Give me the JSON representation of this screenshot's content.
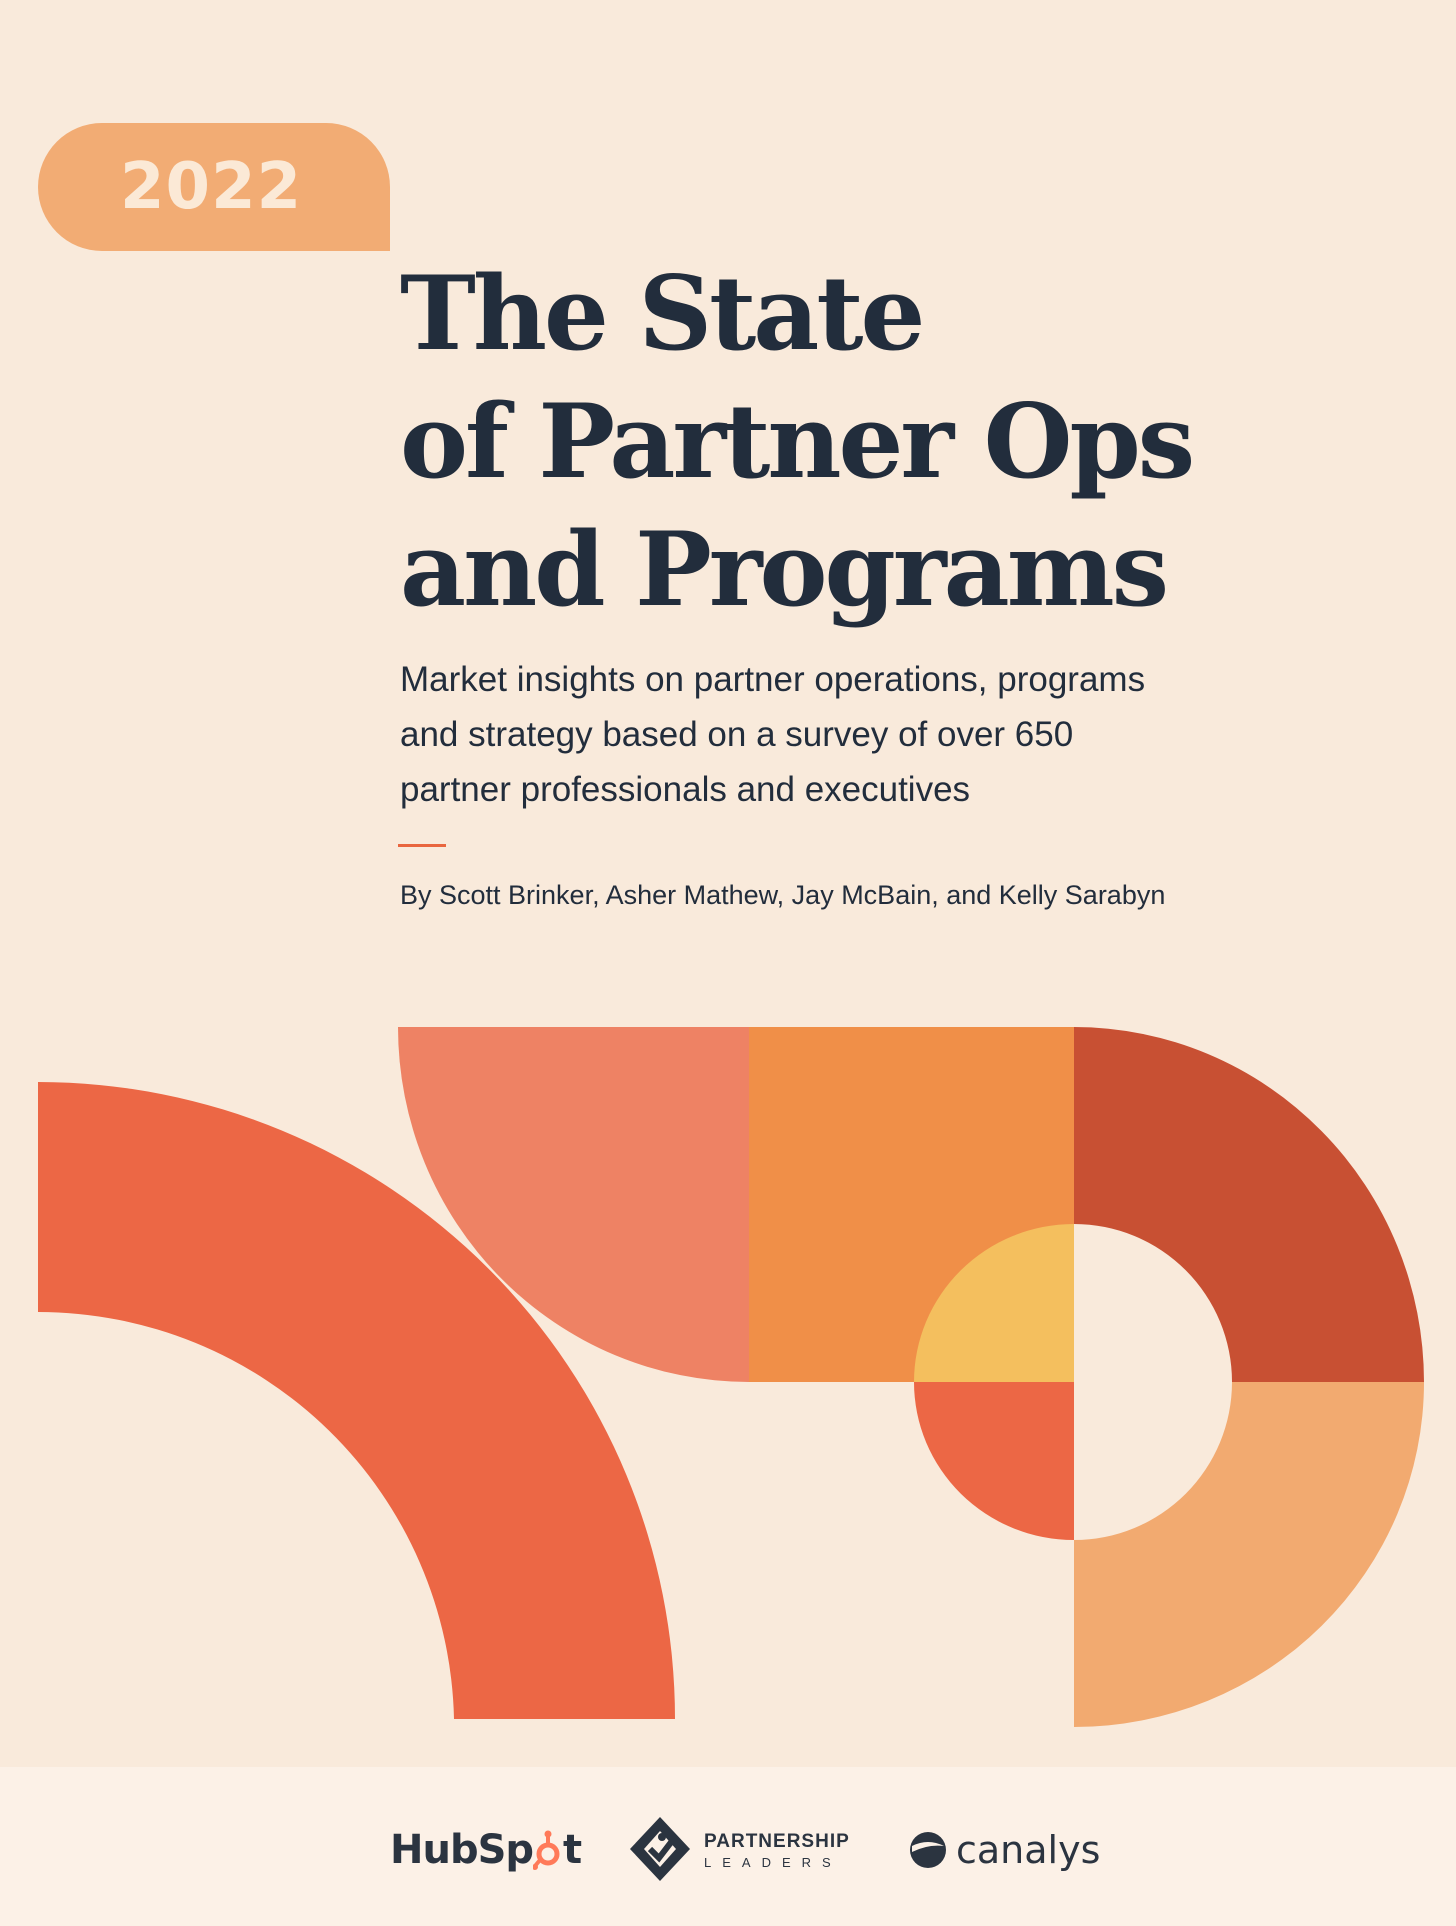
{
  "cover": {
    "year": "2022",
    "title_lines": [
      "The State",
      "of Partner Ops",
      "and Programs"
    ],
    "subtitle_lines": [
      "Market insights on partner operations, programs",
      "and strategy based on a survey of over 650",
      "partner professionals and executives"
    ],
    "byline": "By Scott Brinker, Asher Mathew, Jay McBain, and Kelly Sarabyn"
  },
  "logos": {
    "hubspot": {
      "text_before": "HubSp",
      "text_after": "t"
    },
    "partnership_leaders": {
      "line1": "PARTNERSHIP",
      "line2": "LEADERS"
    },
    "canalys": {
      "text": "canalys"
    }
  },
  "colors": {
    "background": "#f9eadb",
    "footer": "#fcf1e7",
    "navy": "#222d3c",
    "year_pill": "#f2ac74",
    "coral": "#ec6745",
    "salmon": "#ee8264",
    "orange": "#f08f48",
    "rust": "#c85033",
    "peach": "#f2aa70",
    "yellow": "#f4bf5e",
    "hubspot_orange": "#ff7a59"
  }
}
